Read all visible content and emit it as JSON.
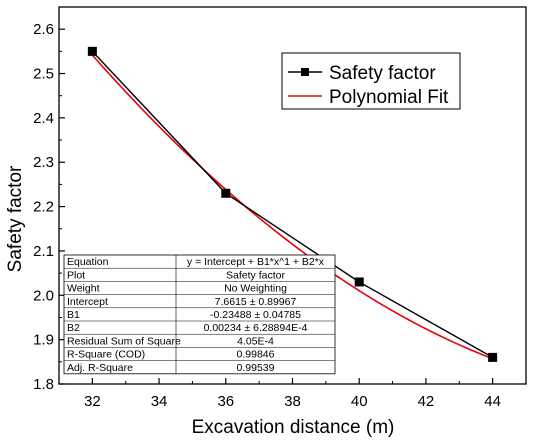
{
  "chart_data": {
    "type": "line",
    "title": "",
    "xlabel": "Excavation distance (m)",
    "ylabel": "Safety factor",
    "xlim": [
      31,
      45
    ],
    "ylim": [
      1.8,
      2.65
    ],
    "xticks": [
      "32",
      "34",
      "36",
      "38",
      "40",
      "42",
      "44"
    ],
    "yticks": [
      "1.8",
      "1.9",
      "2.0",
      "2.1",
      "2.2",
      "2.3",
      "2.4",
      "2.5",
      "2.6"
    ],
    "series": [
      {
        "name": "Safety factor",
        "color": "#000000",
        "marker": "square",
        "x": [
          32,
          36,
          40,
          44
        ],
        "y": [
          2.55,
          2.23,
          2.03,
          1.86
        ]
      },
      {
        "name": "Polynomial Fit",
        "color": "#e8000b",
        "marker": "none",
        "fit": {
          "intercept": 7.6615,
          "b1": -0.23488,
          "b2": 0.00234
        }
      }
    ],
    "legend_position": "top-right",
    "grid": false,
    "fit_table": [
      {
        "label": "Equation",
        "value": "y = Intercept + B1*x^1 + B2*x"
      },
      {
        "label": "Plot",
        "value": "Safety factor"
      },
      {
        "label": "Weight",
        "value": "No Weighting"
      },
      {
        "label": "Intercept",
        "value": "7.6615 ± 0.89967"
      },
      {
        "label": "B1",
        "value": "-0.23488 ± 0.04785"
      },
      {
        "label": "B2",
        "value": "0.00234 ± 6.28894E-4"
      },
      {
        "label": "Residual Sum of Square",
        "value": "4.05E-4"
      },
      {
        "label": "R-Square (COD)",
        "value": "0.99846"
      },
      {
        "label": "Adj. R-Square",
        "value": "0.99539"
      }
    ]
  }
}
